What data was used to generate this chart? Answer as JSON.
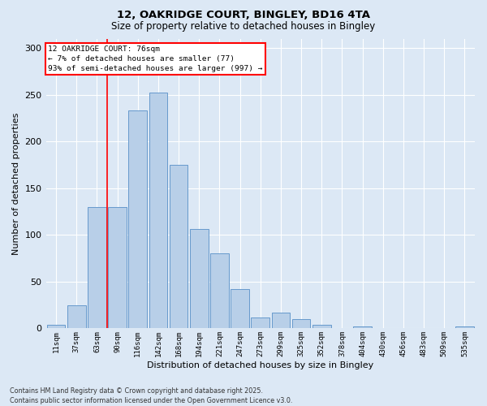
{
  "title1": "12, OAKRIDGE COURT, BINGLEY, BD16 4TA",
  "title2": "Size of property relative to detached houses in Bingley",
  "xlabel": "Distribution of detached houses by size in Bingley",
  "ylabel": "Number of detached properties",
  "categories": [
    "11sqm",
    "37sqm",
    "63sqm",
    "90sqm",
    "116sqm",
    "142sqm",
    "168sqm",
    "194sqm",
    "221sqm",
    "247sqm",
    "273sqm",
    "299sqm",
    "325sqm",
    "352sqm",
    "378sqm",
    "404sqm",
    "430sqm",
    "456sqm",
    "483sqm",
    "509sqm",
    "535sqm"
  ],
  "values": [
    4,
    25,
    130,
    130,
    233,
    252,
    175,
    106,
    80,
    42,
    12,
    17,
    10,
    4,
    0,
    2,
    0,
    0,
    0,
    0,
    2
  ],
  "bar_color": "#b8cfe8",
  "bar_edge_color": "#6699cc",
  "background_color": "#dce8f5",
  "fig_background": "#dce8f5",
  "annotation_title": "12 OAKRIDGE COURT: 76sqm",
  "annotation_line1": "← 7% of detached houses are smaller (77)",
  "annotation_line2": "93% of semi-detached houses are larger (997) →",
  "ylim": [
    0,
    310
  ],
  "yticks": [
    0,
    50,
    100,
    150,
    200,
    250,
    300
  ],
  "footer1": "Contains HM Land Registry data © Crown copyright and database right 2025.",
  "footer2": "Contains public sector information licensed under the Open Government Licence v3.0.",
  "red_line_index": 2.5
}
